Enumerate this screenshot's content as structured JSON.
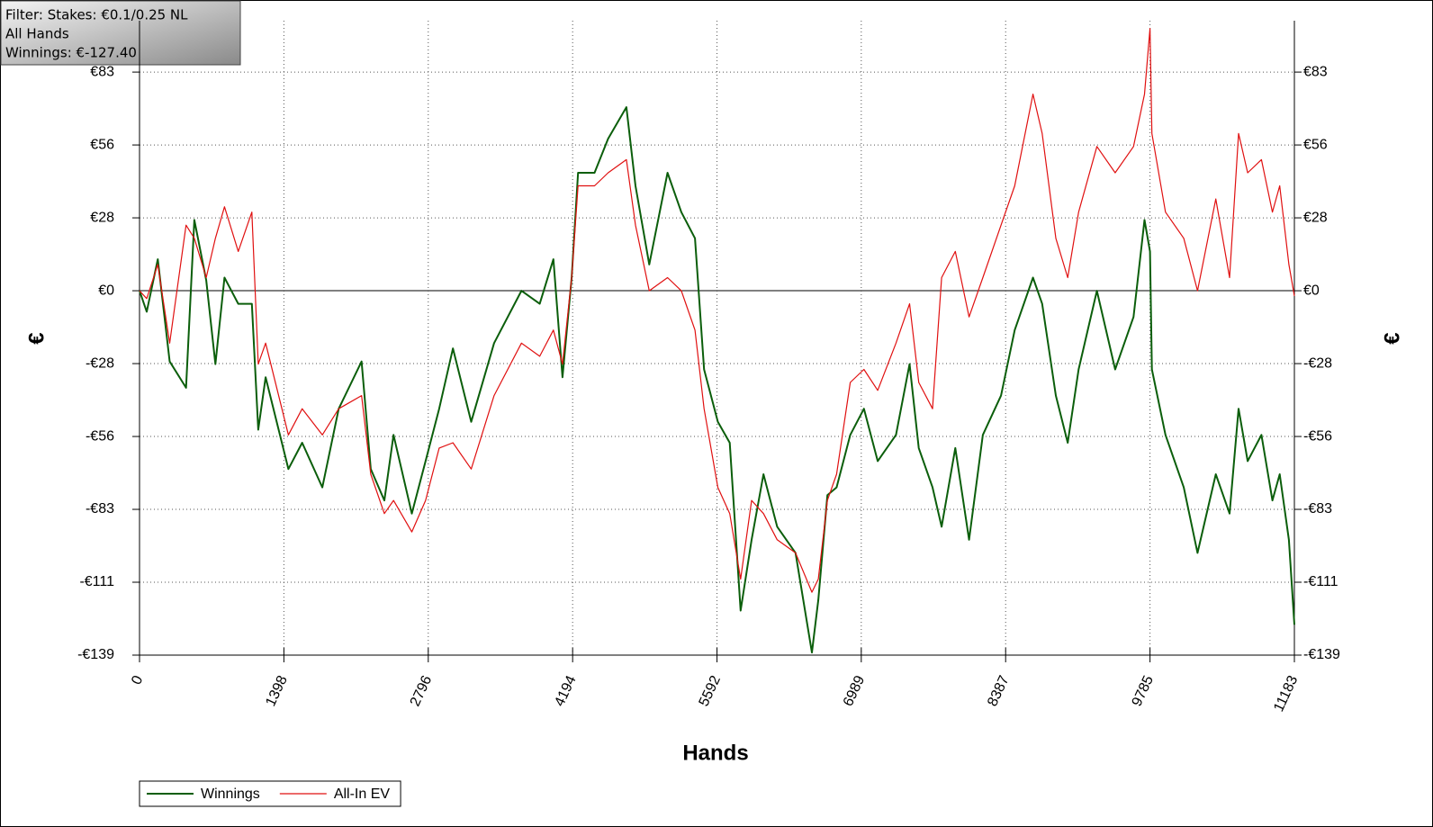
{
  "chart_data": {
    "type": "line",
    "annotations": [
      "Filter: Stakes: €0.1/0.25 NL",
      "All Hands",
      "Winnings: €-127.40"
    ],
    "x_label": "Hands",
    "y_label": "€",
    "y2_label": "€",
    "x": [
      0,
      70,
      177,
      292,
      451,
      531,
      646,
      735,
      823,
      956,
      1088,
      1150,
      1221,
      1442,
      1575,
      1770,
      1929,
      2150,
      2239,
      2371,
      2460,
      2637,
      2770,
      2902,
      3035,
      3212,
      3433,
      3698,
      3875,
      4008,
      4096,
      4185,
      4247,
      4406,
      4538,
      4715,
      4803,
      4936,
      5113,
      5246,
      5379,
      5467,
      5600,
      5715,
      5821,
      5927,
      6042,
      6175,
      6352,
      6511,
      6573,
      6661,
      6750,
      6882,
      7015,
      7148,
      7325,
      7457,
      7546,
      7679,
      7767,
      7900,
      8033,
      8166,
      8342,
      8475,
      8652,
      8741,
      8873,
      8988,
      9094,
      9271,
      9448,
      9625,
      9732,
      9785,
      9803,
      9935,
      10112,
      10245,
      10422,
      10555,
      10643,
      10731,
      10864,
      10970,
      11041,
      11130,
      11183
    ],
    "series": [
      {
        "name": "Winnings",
        "color": "#0b5e0b",
        "values": [
          0,
          -8,
          12,
          -27,
          -37,
          27,
          4,
          -28,
          5,
          -5,
          -5,
          -53,
          -33,
          -68,
          -58,
          -75,
          -45,
          -27,
          -68,
          -80,
          -55,
          -85,
          -65,
          -45,
          -22,
          -50,
          -20,
          0,
          -5,
          12,
          -33,
          5,
          45,
          45,
          58,
          70,
          40,
          10,
          45,
          30,
          20,
          -30,
          -50,
          -58,
          -122,
          -95,
          -70,
          -90,
          -100,
          -138,
          -118,
          -78,
          -75,
          -55,
          -45,
          -65,
          -55,
          -28,
          -60,
          -75,
          -90,
          -60,
          -95,
          -55,
          -40,
          -15,
          5,
          -5,
          -40,
          -58,
          -30,
          0,
          -30,
          -10,
          27,
          15,
          -30,
          -55,
          -75,
          -100,
          -70,
          -85,
          -45,
          -65,
          -55,
          -80,
          -70,
          -95,
          -127.4
        ]
      },
      {
        "name": "All-In EV",
        "color": "#e01010",
        "values": [
          0,
          -3,
          10,
          -20,
          25,
          20,
          5,
          20,
          32,
          15,
          30,
          -28,
          -20,
          -55,
          -45,
          -55,
          -45,
          -40,
          -70,
          -85,
          -80,
          -92,
          -80,
          -60,
          -58,
          -68,
          -40,
          -20,
          -25,
          -15,
          -28,
          5,
          40,
          40,
          45,
          50,
          25,
          0,
          5,
          0,
          -15,
          -45,
          -75,
          -85,
          -110,
          -80,
          -85,
          -95,
          -100,
          -115,
          -110,
          -80,
          -70,
          -35,
          -30,
          -38,
          -20,
          -5,
          -35,
          -45,
          5,
          15,
          -10,
          5,
          25,
          40,
          75,
          60,
          20,
          5,
          30,
          55,
          45,
          55,
          75,
          100,
          60,
          30,
          20,
          0,
          35,
          5,
          60,
          45,
          50,
          30,
          40,
          10,
          -2
        ]
      }
    ],
    "xlim": [
      0,
      11183
    ],
    "xticks": [
      0,
      1398,
      2796,
      4194,
      5592,
      6989,
      8387,
      9785,
      11183
    ],
    "ylim": [
      -139,
      103
    ],
    "yticks": [
      {
        "value": -139,
        "label": "-€139"
      },
      {
        "value": -111.2,
        "label": "-€111"
      },
      {
        "value": -83.4,
        "label": "-€83"
      },
      {
        "value": -55.6,
        "label": "-€56"
      },
      {
        "value": -27.8,
        "label": "-€28"
      },
      {
        "value": 0,
        "label": "€0"
      },
      {
        "value": 27.8,
        "label": "€28"
      },
      {
        "value": 55.6,
        "label": "€56"
      },
      {
        "value": 83.4,
        "label": "€83"
      }
    ],
    "grid": true,
    "legend": "bottom-left"
  }
}
